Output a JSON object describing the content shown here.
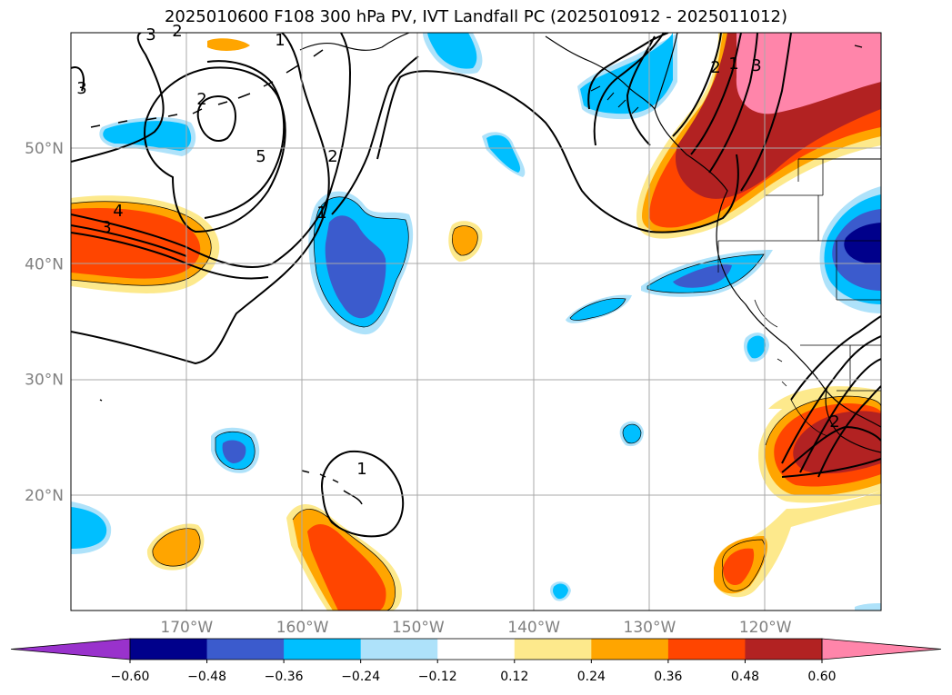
{
  "title": "2025010600 F108 300 hPa PV, IVT Landfall PC (2025010912 - 2025011012)",
  "map": {
    "lat_labels": [
      {
        "lat": 50,
        "text": "50°N"
      },
      {
        "lat": 40,
        "text": "40°N"
      },
      {
        "lat": 30,
        "text": "30°N"
      },
      {
        "lat": 20,
        "text": "20°N"
      }
    ],
    "lon_labels": [
      {
        "lon": -170,
        "text": "170°W"
      },
      {
        "lon": -160,
        "text": "160°W"
      },
      {
        "lon": -150,
        "text": "150°W"
      },
      {
        "lon": -140,
        "text": "140°W"
      },
      {
        "lon": -130,
        "text": "130°W"
      },
      {
        "lon": -120,
        "text": "120°W"
      }
    ],
    "lon_range": [
      -180,
      -110
    ],
    "lat_range": [
      10,
      60
    ],
    "gridlines": true,
    "pv_contour_labels": [
      "3",
      "3",
      "2",
      "1",
      "5",
      "2",
      "1",
      "4",
      "3",
      "2",
      "1",
      "3",
      "2",
      "1",
      "2"
    ]
  },
  "colorbar": {
    "labels": [
      "−0.60",
      "−0.48",
      "−0.36",
      "−0.24",
      "−0.12",
      "0.12",
      "0.24",
      "0.36",
      "0.48",
      "0.60"
    ],
    "colors": [
      "#9932cc",
      "#00008b",
      "#3b5bcd",
      "#00bfff",
      "#aee2fa",
      "#ffffff",
      "#fde98c",
      "#ffa500",
      "#ff4500",
      "#b22222",
      "#ff85aa"
    ],
    "extend": "both"
  }
}
